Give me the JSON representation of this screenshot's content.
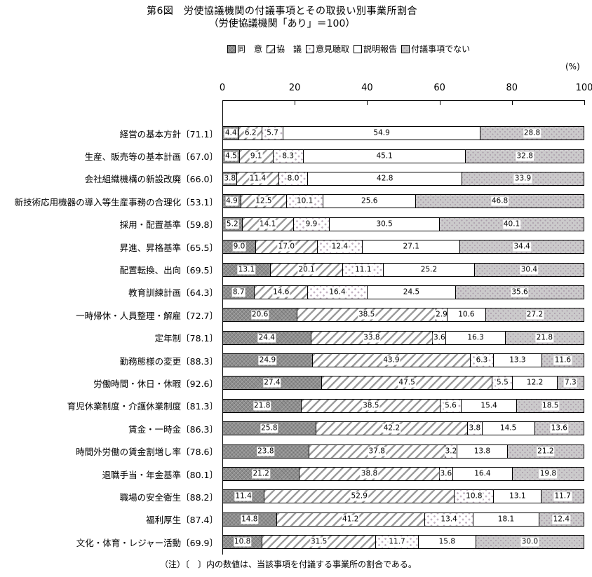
{
  "title": "第6図　労使協議機関の付議事項とその取扱い別事業所割合",
  "subtitle": "（労使協議機関「あり」＝100）",
  "unit_label": "(%)",
  "note": "（注）〔　〕内の数値は、当該事項を付議する事業所の割合である。",
  "legend": [
    "同　意",
    "協　議",
    "意見聴取",
    "説明報告",
    "付議事項でない"
  ],
  "colors": {
    "consent_dark_gray": "#8e8e8e",
    "hatch_gray": "#9c9c9c",
    "diamond_dot_gray": "#c3b4c3",
    "not_referred_light_gray": "#cbcacb",
    "axis_black": "#000000"
  },
  "chart_data": {
    "type": "bar",
    "orientation": "horizontal",
    "stacked": true,
    "title": "第6図　労使協議機関の付議事項とその取扱い別事業所割合（労使協議機関「あり」＝100）",
    "xlabel": "(%)",
    "xlim": [
      0,
      100
    ],
    "x_ticks": [
      0,
      20,
      40,
      60,
      80,
      100
    ],
    "legend_position": "top",
    "series_names": [
      "同　意",
      "協　議",
      "意見聴取",
      "説明報告",
      "付議事項でない"
    ],
    "series_styles": [
      "dark-gray-texture",
      "diagonal-hatch",
      "diamond-dots",
      "white",
      "light-gray-dots"
    ],
    "rows": [
      {
        "label": "経営の基本方針〔71.1〕",
        "values": [
          4.4,
          6.2,
          5.7,
          54.9,
          28.8
        ]
      },
      {
        "label": "生産、販売等の基本計画〔67.0〕",
        "values": [
          4.5,
          9.1,
          8.3,
          45.1,
          32.8
        ]
      },
      {
        "label": "会社組織機構の新設改廃〔66.0〕",
        "values": [
          3.8,
          11.4,
          8.0,
          42.8,
          33.9
        ]
      },
      {
        "label": "新技術応用機器の導入等生産事務の合理化〔53.1〕",
        "values": [
          4.9,
          12.5,
          10.1,
          25.6,
          46.8
        ]
      },
      {
        "label": "採用・配置基準〔59.8〕",
        "values": [
          5.2,
          14.1,
          9.9,
          30.5,
          40.1
        ]
      },
      {
        "label": "昇進、昇格基準〔65.5〕",
        "values": [
          9.0,
          17.0,
          12.4,
          27.1,
          34.4
        ]
      },
      {
        "label": "配置転換、出向〔69.5〕",
        "values": [
          13.1,
          20.1,
          11.1,
          25.2,
          30.4
        ]
      },
      {
        "label": "教育訓練計画〔64.3〕",
        "values": [
          8.7,
          14.6,
          16.4,
          24.5,
          35.6
        ]
      },
      {
        "label": "一時帰休・人員整理・解雇〔72.7〕",
        "values": [
          20.6,
          38.5,
          2.9,
          10.6,
          27.2
        ]
      },
      {
        "label": "定年制〔78.1〕",
        "values": [
          24.4,
          33.8,
          3.6,
          16.3,
          21.8
        ]
      },
      {
        "label": "勤務態様の変更〔88.3〕",
        "values": [
          24.9,
          43.9,
          6.3,
          13.3,
          11.6
        ]
      },
      {
        "label": "労働時間・休日・休暇〔92.6〕",
        "values": [
          27.4,
          47.5,
          5.5,
          12.2,
          7.3
        ]
      },
      {
        "label": "育児休業制度・介護休業制度〔81.3〕",
        "values": [
          21.8,
          38.5,
          5.6,
          15.4,
          18.5
        ]
      },
      {
        "label": "賃金・一時金〔86.3〕",
        "values": [
          25.8,
          42.2,
          3.8,
          14.5,
          13.6
        ]
      },
      {
        "label": "時間外労働の賃金割増し率〔78.6〕",
        "values": [
          23.8,
          37.8,
          3.2,
          13.8,
          21.2
        ]
      },
      {
        "label": "退職手当・年金基準〔80.1〕",
        "values": [
          21.2,
          38.8,
          3.6,
          16.4,
          19.8
        ]
      },
      {
        "label": "職場の安全衛生〔88.2〕",
        "values": [
          11.4,
          52.9,
          10.8,
          13.1,
          11.7
        ]
      },
      {
        "label": "福利厚生〔87.4〕",
        "values": [
          14.8,
          41.2,
          13.4,
          18.1,
          12.4
        ]
      },
      {
        "label": "文化・体育・レジャー活動〔69.9〕",
        "values": [
          10.8,
          31.5,
          11.7,
          15.8,
          30.0
        ]
      }
    ]
  }
}
